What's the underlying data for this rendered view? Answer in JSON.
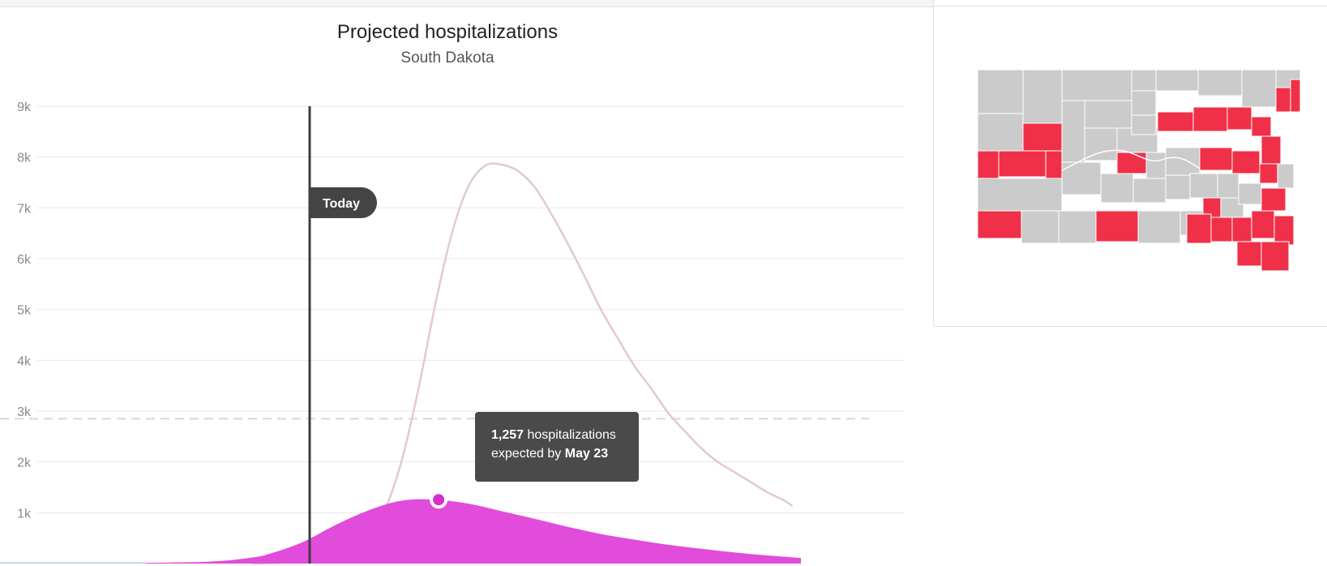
{
  "chart_data": {
    "type": "area",
    "title": "Projected hospitalizations",
    "subtitle": "South Dakota",
    "y_ticks": [
      "1k",
      "2k",
      "3k",
      "4k",
      "5k",
      "6k",
      "7k",
      "8k",
      "9k"
    ],
    "ylim": [
      0,
      9000
    ],
    "grid": true,
    "today_label": "Today",
    "capacity_line": 2850,
    "series": [
      {
        "style": "line",
        "color": "#e2c9cf",
        "points": [
          [
            150,
            0
          ],
          [
            190,
            60
          ],
          [
            210,
            230
          ],
          [
            220,
            520
          ],
          [
            230,
            1080
          ],
          [
            240,
            2050
          ],
          [
            250,
            3460
          ],
          [
            260,
            5100
          ],
          [
            270,
            6500
          ],
          [
            280,
            7430
          ],
          [
            290,
            7830
          ],
          [
            300,
            7850
          ],
          [
            310,
            7720
          ],
          [
            320,
            7400
          ],
          [
            330,
            6870
          ],
          [
            340,
            6280
          ],
          [
            350,
            5640
          ],
          [
            360,
            4980
          ],
          [
            370,
            4420
          ],
          [
            380,
            3880
          ],
          [
            390,
            3440
          ],
          [
            400,
            2970
          ],
          [
            410,
            2610
          ],
          [
            420,
            2270
          ],
          [
            430,
            2000
          ],
          [
            440,
            1800
          ],
          [
            450,
            1600
          ],
          [
            460,
            1400
          ],
          [
            470,
            1240
          ],
          [
            475,
            1130
          ]
        ]
      },
      {
        "style": "area",
        "color": "#e14cdb",
        "points": [
          [
            0,
            0
          ],
          [
            100,
            20
          ],
          [
            130,
            50
          ],
          [
            150,
            120
          ],
          [
            160,
            190
          ],
          [
            180,
            420
          ],
          [
            200,
            760
          ],
          [
            220,
            1050
          ],
          [
            240,
            1240
          ],
          [
            260,
            1257
          ],
          [
            280,
            1180
          ],
          [
            300,
            1030
          ],
          [
            320,
            880
          ],
          [
            340,
            720
          ],
          [
            360,
            580
          ],
          [
            380,
            470
          ],
          [
            400,
            370
          ],
          [
            420,
            290
          ],
          [
            440,
            220
          ],
          [
            460,
            160
          ],
          [
            480,
            110
          ]
        ]
      }
    ],
    "highlight": {
      "x": 262,
      "y": 1257
    },
    "tooltip": {
      "value": "1,257",
      "text1": " hospitalizations",
      "text2": "expected by ",
      "date": "May 23"
    }
  },
  "map": {
    "active_color": "#f03048",
    "inactive_color": "#cbcbcb",
    "border_color": "#ffffff"
  }
}
